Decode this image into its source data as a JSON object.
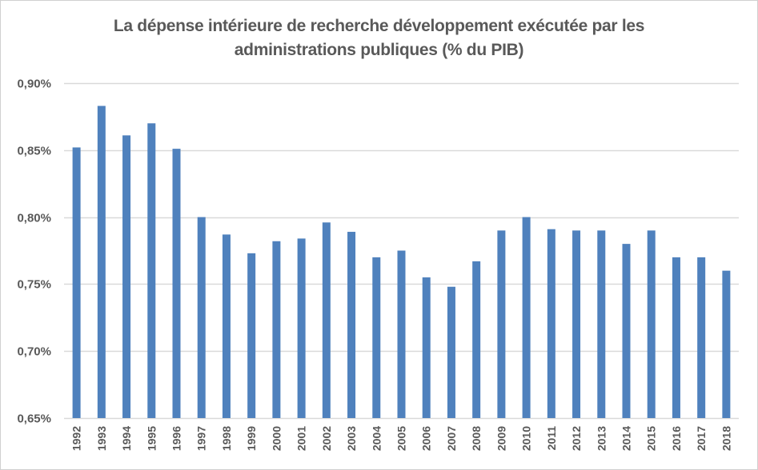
{
  "chart_data": {
    "type": "bar",
    "title_line1": "La dépense intérieure de recherche développement exécutée par les",
    "title_line2": "administrations publiques (% du PIB)",
    "xlabel": "",
    "ylabel": "",
    "ylim": [
      0.65,
      0.9
    ],
    "yticks": [
      0.65,
      0.7,
      0.75,
      0.8,
      0.85,
      0.9
    ],
    "ytick_labels": [
      "0,65%",
      "0,70%",
      "0,75%",
      "0,80%",
      "0,85%",
      "0,90%"
    ],
    "grid": true,
    "legend": "none",
    "bar_color": "#4F81BD",
    "categories": [
      "1992",
      "1993",
      "1994",
      "1995",
      "1996",
      "1997",
      "1998",
      "1999",
      "2000",
      "2001",
      "2002",
      "2003",
      "2004",
      "2005",
      "2006",
      "2007",
      "2008",
      "2009",
      "2010",
      "2011",
      "2012",
      "2013",
      "2014",
      "2015",
      "2016",
      "2017",
      "2018"
    ],
    "values": [
      0.852,
      0.883,
      0.861,
      0.87,
      0.851,
      0.8,
      0.787,
      0.773,
      0.782,
      0.784,
      0.796,
      0.789,
      0.77,
      0.775,
      0.755,
      0.748,
      0.767,
      0.79,
      0.8,
      0.791,
      0.79,
      0.79,
      0.78,
      0.79,
      0.77,
      0.77,
      0.76
    ]
  }
}
